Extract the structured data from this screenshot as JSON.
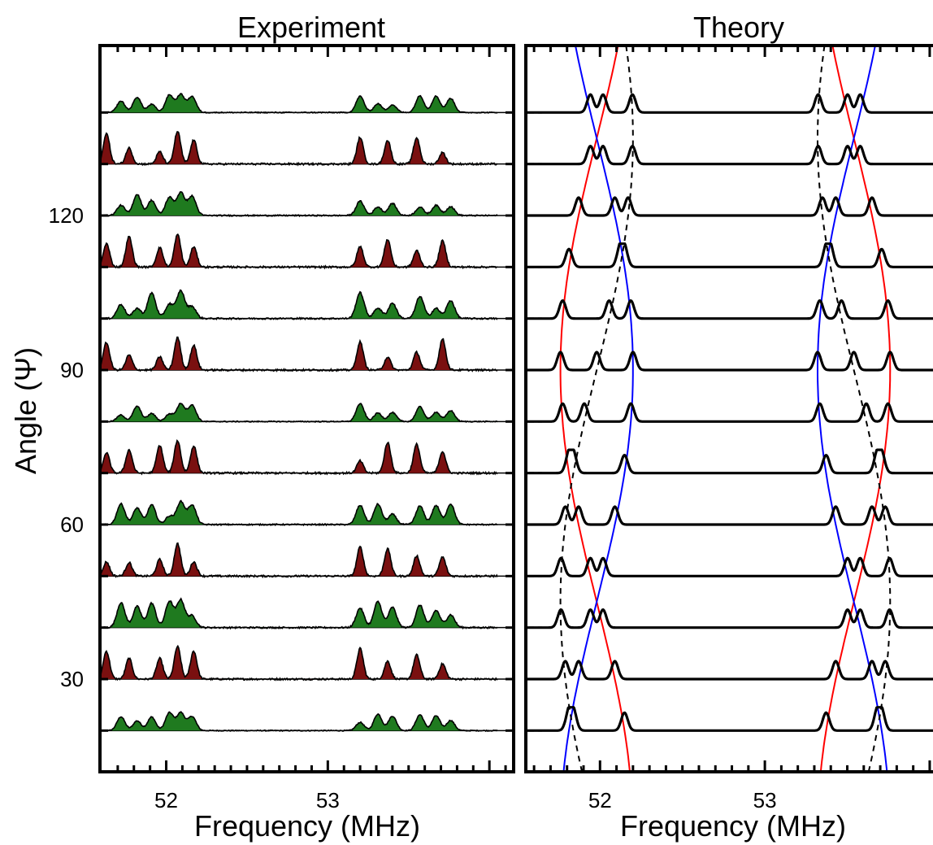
{
  "chart_data": [
    {
      "panel": "experiment",
      "type": "line",
      "title": "Experiment",
      "xlabel": "Frequency (MHz)",
      "ylabel": "Angle (Ψ)",
      "xlim": [
        51.59,
        54.15
      ],
      "ylim": [
        12,
        153
      ],
      "xticks_labeled": [
        52,
        53
      ],
      "xtick_labels": [
        "52",
        "53"
      ],
      "yticks": [
        30,
        60,
        90,
        120
      ],
      "ytick_labels": [
        "30",
        "60",
        "90",
        "120"
      ],
      "grid": false,
      "legend": "none",
      "colors": {
        "odd_traces": "#1f7a1f",
        "even_traces": "#7a1010"
      },
      "trace_angles": [
        20,
        30,
        40,
        50,
        60,
        70,
        80,
        90,
        100,
        110,
        120,
        130,
        140
      ],
      "trace_fill": [
        "green",
        "red",
        "green",
        "red",
        "green",
        "red",
        "green",
        "red",
        "green",
        "red",
        "green",
        "red",
        "green"
      ],
      "peak_clusters_mhz": [
        [
          51.72,
          51.82,
          51.91,
          52.02,
          52.09,
          52.16,
          53.2,
          53.31,
          53.4,
          53.57,
          53.67,
          53.76
        ],
        [
          51.63,
          51.77,
          51.96,
          52.07,
          52.17,
          53.2,
          53.37,
          53.55,
          53.71
        ]
      ]
    },
    {
      "panel": "theory",
      "type": "line",
      "title": "Theory",
      "xlabel": "Frequency (MHz)",
      "xlim": [
        51.55,
        54.02
      ],
      "ylim": [
        12,
        153
      ],
      "xticks_labeled": [
        52,
        53
      ],
      "xtick_labels": [
        "52",
        "53"
      ],
      "yticks": [
        30,
        60,
        90,
        120
      ],
      "grid": false,
      "legend": "none",
      "colors": {
        "traces": "#000000",
        "branch_a": "#ff0000",
        "branch_b": "#0000ff",
        "branch_c": "#000000"
      },
      "trace_angles": [
        20,
        30,
        40,
        50,
        60,
        70,
        80,
        90,
        100,
        110,
        120,
        130,
        140
      ],
      "branches": [
        {
          "style": "red",
          "center_mhz": 51.98,
          "amplitude_mhz": 0.22,
          "phase_deg": 0
        },
        {
          "style": "blue",
          "center_mhz": 51.98,
          "amplitude_mhz": 0.22,
          "phase_deg": 180
        },
        {
          "style": "dashed",
          "center_mhz": 51.98,
          "amplitude_mhz": 0.22,
          "phase_deg": 90
        },
        {
          "style": "red",
          "center_mhz": 53.54,
          "amplitude_mhz": 0.22,
          "phase_deg": 180
        },
        {
          "style": "blue",
          "center_mhz": 53.54,
          "amplitude_mhz": 0.22,
          "phase_deg": 0
        },
        {
          "style": "dashed",
          "center_mhz": 53.54,
          "amplitude_mhz": 0.22,
          "phase_deg": 270
        }
      ]
    }
  ]
}
